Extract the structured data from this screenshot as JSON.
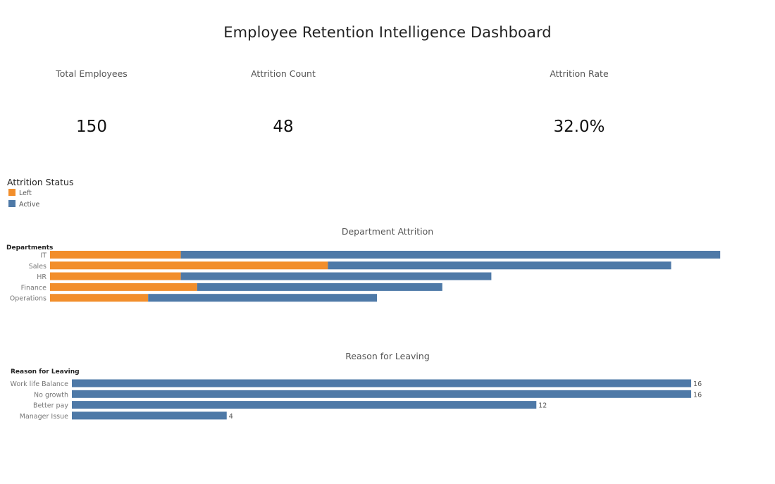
{
  "dashboard": {
    "title": "Employee Retention Intelligence Dashboard"
  },
  "kpis": [
    {
      "label": "Total Employees",
      "value": "150"
    },
    {
      "label": "Attrition Count",
      "value": "48"
    },
    {
      "label": "Attrition Rate",
      "value": "32.0%"
    }
  ],
  "legend": {
    "title": "Attrition Status",
    "items": [
      {
        "label": "Left",
        "color": "#f28e2b"
      },
      {
        "label": "Active",
        "color": "#4e79a7"
      }
    ]
  },
  "chart_data": [
    {
      "type": "bar",
      "orientation": "horizontal",
      "stacked": true,
      "title": "Department Attrition",
      "ylabel": "Departments",
      "categories": [
        "IT",
        "Sales",
        "HR",
        "Finance",
        "Operations"
      ],
      "series": [
        {
          "name": "Left",
          "color": "#f28e2b",
          "values": [
            8,
            17,
            8,
            9,
            6
          ]
        },
        {
          "name": "Active",
          "color": "#4e79a7",
          "values": [
            33,
            21,
            19,
            15,
            14
          ]
        }
      ],
      "grid": false
    },
    {
      "type": "bar",
      "orientation": "horizontal",
      "title": "Reason for Leaving",
      "ylabel": "Reason for Leaving",
      "categories": [
        "Work life Balance",
        "No growth",
        "Better pay",
        "Manager Issue"
      ],
      "values": [
        16,
        16,
        12,
        4
      ],
      "data_labels": [
        "16",
        "16",
        "12",
        "4"
      ],
      "color": "#4e79a7",
      "grid": false
    }
  ]
}
